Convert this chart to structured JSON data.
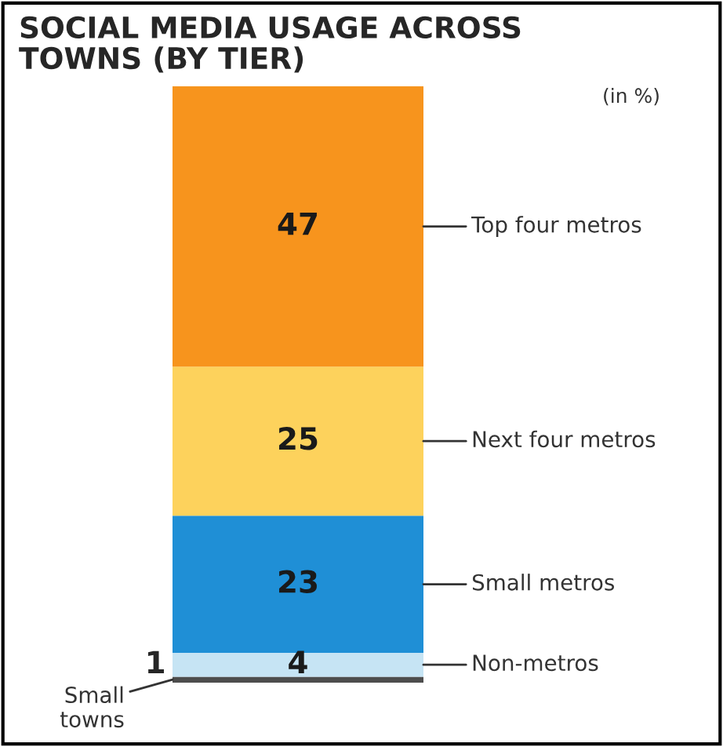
{
  "chart_data": {
    "type": "bar",
    "title": "SOCIAL MEDIA USAGE ACROSS\nTOWNS (BY TIER)",
    "annotations": [
      "(in %)"
    ],
    "categories": [
      null
    ],
    "stacked": true,
    "data_labels": true,
    "legend": false,
    "series": [
      {
        "name": "Small towns",
        "color": "#4d4d4d",
        "values": [
          1
        ]
      },
      {
        "name": "Non-metros",
        "color": "#c6e4f4",
        "values": [
          4
        ]
      },
      {
        "name": "Small metros",
        "color": "#1f8fd6",
        "values": [
          23
        ]
      },
      {
        "name": "Next four metros",
        "color": "#fdd25c",
        "values": [
          25
        ]
      },
      {
        "name": "Top four metros",
        "color": "#f7941d",
        "values": [
          47
        ]
      }
    ]
  }
}
